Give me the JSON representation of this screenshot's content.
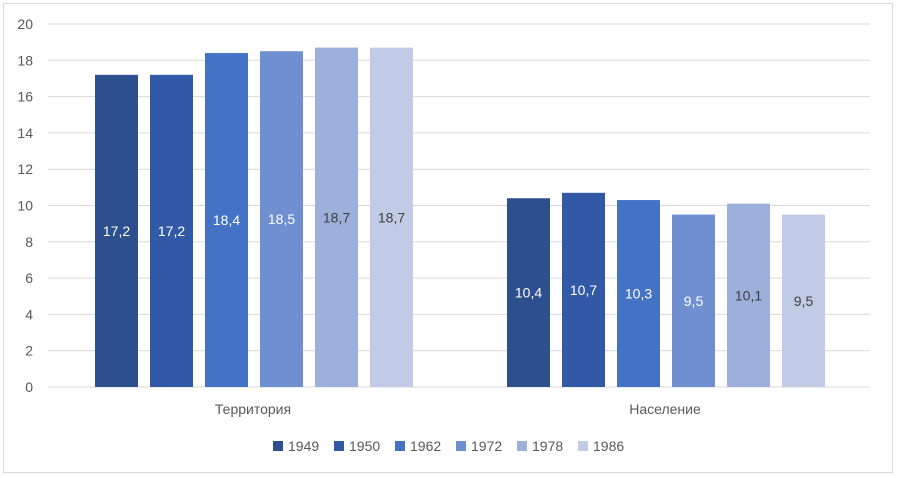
{
  "chart_data": {
    "type": "bar",
    "categories": [
      "Территория",
      "Население"
    ],
    "series": [
      {
        "name": "1949",
        "values": [
          17.2,
          10.4
        ],
        "labels": [
          "17,2",
          "10,4"
        ],
        "color": "#2e4f8e",
        "label_color": "#ffffff"
      },
      {
        "name": "1950",
        "values": [
          17.2,
          10.7
        ],
        "labels": [
          "17,2",
          "10,7"
        ],
        "color": "#3259a6",
        "label_color": "#ffffff"
      },
      {
        "name": "1962",
        "values": [
          18.4,
          10.3
        ],
        "labels": [
          "18,4",
          "10,3"
        ],
        "color": "#4472c4",
        "label_color": "#ffffff"
      },
      {
        "name": "1972",
        "values": [
          18.5,
          9.5
        ],
        "labels": [
          "18,5",
          "9,5"
        ],
        "color": "#6f8fd0",
        "label_color": "#ffffff"
      },
      {
        "name": "1978",
        "values": [
          18.7,
          10.1
        ],
        "labels": [
          "18,7",
          "10,1"
        ],
        "color": "#9dafdb",
        "label_color": "#404040"
      },
      {
        "name": "1986",
        "values": [
          18.7,
          9.5
        ],
        "labels": [
          "18,7",
          "9,5"
        ],
        "color": "#c1cbe6",
        "label_color": "#404040"
      }
    ],
    "ylim": [
      0,
      20
    ],
    "yticks": [
      0,
      2,
      4,
      6,
      8,
      10,
      12,
      14,
      16,
      18,
      20
    ],
    "grid": true,
    "legend": "bottom",
    "title": "",
    "xlabel": "",
    "ylabel": ""
  }
}
